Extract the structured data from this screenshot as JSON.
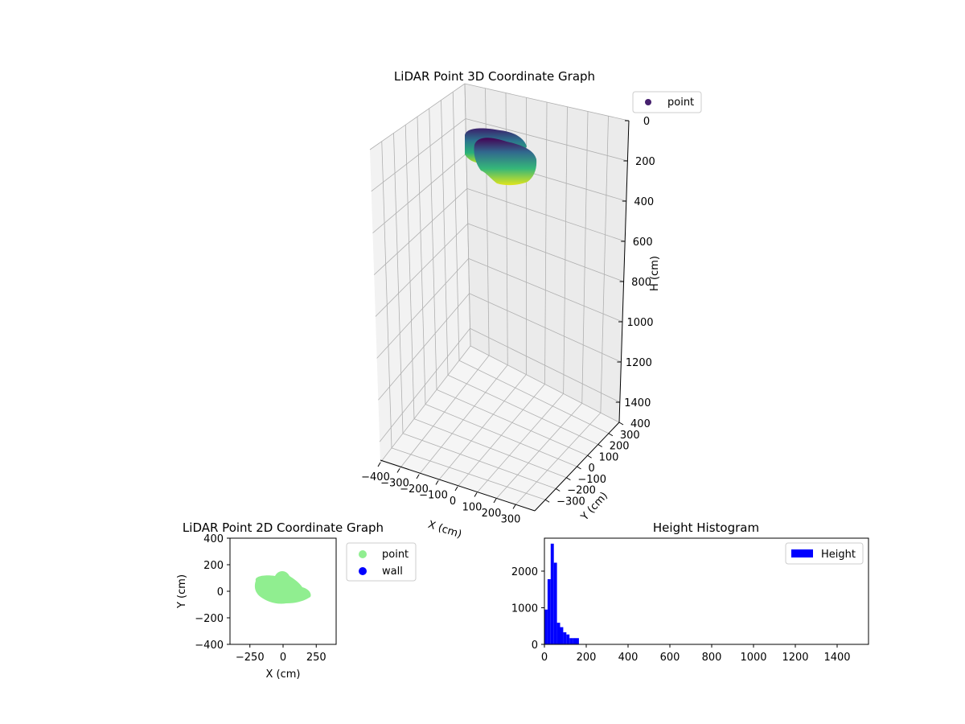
{
  "chart_data": [
    {
      "type": "scatter3d",
      "title": "LiDAR Point 3D Coordinate Graph",
      "xlabel": "X (cm)",
      "ylabel": "Y (cm)",
      "zlabel": "H (cm)",
      "xlim": [
        -400,
        400
      ],
      "ylim": [
        -400,
        400
      ],
      "zlim": [
        0,
        1500
      ],
      "z_inverted": true,
      "xticks": [
        "−400",
        "−300",
        "−200",
        "−100",
        "0",
        "100",
        "200",
        "300"
      ],
      "yticks": [
        "−300",
        "−200",
        "−100",
        "0",
        "100",
        "200",
        "300",
        "400"
      ],
      "zticks": [
        "0",
        "200",
        "400",
        "600",
        "800",
        "1000",
        "1200",
        "1400"
      ],
      "xtick_values": [
        -400,
        -300,
        -200,
        -100,
        0,
        100,
        200,
        300
      ],
      "ytick_values": [
        -300,
        -200,
        -100,
        0,
        100,
        200,
        300,
        400
      ],
      "ztick_values": [
        0,
        200,
        400,
        600,
        800,
        1000,
        1200,
        1400
      ],
      "grid": true,
      "colormap": "viridis",
      "legend": {
        "entries": [
          "point"
        ],
        "placement": "upper-right-outside"
      },
      "series": [
        {
          "name": "point",
          "clusters": [
            {
              "x": [
                -250,
                -50
              ],
              "y": [
                0,
                130
              ],
              "h": [
                0,
                120
              ]
            },
            {
              "x": [
                -150,
                150
              ],
              "y": [
                -100,
                60
              ],
              "h": [
                0,
                170
              ]
            }
          ]
        }
      ]
    },
    {
      "type": "scatter",
      "title": "LiDAR Point 2D Coordinate Graph",
      "xlabel": "X (cm)",
      "ylabel": "Y (cm)",
      "xlim": [
        -400,
        400
      ],
      "ylim": [
        -400,
        400
      ],
      "xticks": [
        "−250",
        "0",
        "250"
      ],
      "yticks": [
        "−400",
        "−200",
        "0",
        "200",
        "400"
      ],
      "xtick_values": [
        -250,
        0,
        250
      ],
      "ytick_values": [
        -400,
        -200,
        0,
        200,
        400
      ],
      "legend": {
        "entries": [
          "point",
          "wall"
        ],
        "placement": "upper-right-outside"
      },
      "series": [
        {
          "name": "point",
          "color": "#90ee90",
          "region": {
            "x": [
              -230,
              200
            ],
            "y": [
              -100,
              140
            ]
          }
        },
        {
          "name": "wall",
          "color": "#0000ff",
          "points": []
        }
      ]
    },
    {
      "type": "bar",
      "title": "Height Histogram",
      "xlabel": "",
      "ylabel": "",
      "xlim": [
        0,
        1550
      ],
      "ylim": [
        0,
        2900
      ],
      "xticks": [
        "0",
        "200",
        "400",
        "600",
        "800",
        "1000",
        "1200",
        "1400"
      ],
      "yticks": [
        "0",
        "1000",
        "2000"
      ],
      "xtick_values": [
        0,
        200,
        400,
        600,
        800,
        1000,
        1200,
        1400
      ],
      "ytick_values": [
        0,
        1000,
        2000
      ],
      "bin_width": 15,
      "bin_starts": [
        0,
        15,
        30,
        45,
        60,
        75,
        90,
        105,
        120,
        135,
        150
      ],
      "values": [
        950,
        1780,
        2750,
        2230,
        590,
        470,
        330,
        270,
        170,
        170,
        170
      ],
      "color": "#0000ff",
      "legend": {
        "entries": [
          "Height"
        ],
        "placement": "upper-right"
      },
      "series": [
        {
          "name": "Height"
        }
      ]
    }
  ]
}
